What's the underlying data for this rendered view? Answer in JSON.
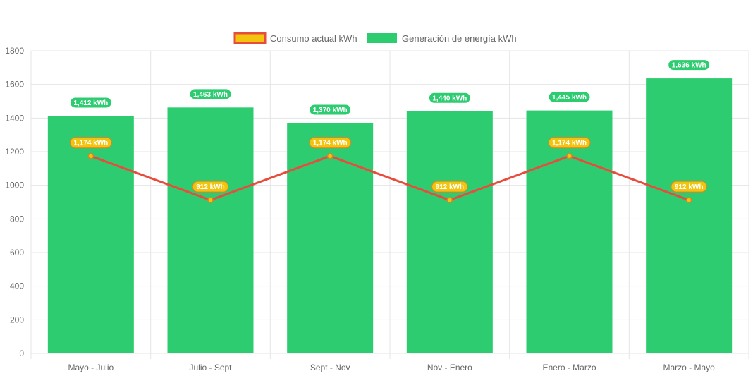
{
  "colors": {
    "bar": "#2ecc71",
    "line": "#e74c3c",
    "point_fill": "#f1c40f",
    "point_border": "#e67e22",
    "grid": "#e5e5e5",
    "text": "#666666"
  },
  "chart_data": {
    "type": "bar",
    "categories": [
      "Mayo - Julio",
      "Julio - Sept",
      "Sept - Nov",
      "Nov - Enero",
      "Enero - Marzo",
      "Marzo - Mayo"
    ],
    "series": [
      {
        "name": "Consumo actual kWh",
        "type": "line",
        "values": [
          1174,
          912,
          1174,
          912,
          1174,
          912
        ],
        "labels": [
          "1,174 kWh",
          "912 kWh",
          "1,174 kWh",
          "912 kWh",
          "1,174 kWh",
          "912 kWh"
        ]
      },
      {
        "name": "Generación de energía kWh",
        "type": "bar",
        "values": [
          1412,
          1463,
          1370,
          1440,
          1445,
          1636
        ],
        "labels": [
          "1,412 kWh",
          "1,463 kWh",
          "1,370 kWh",
          "1,440 kWh",
          "1,445 kWh",
          "1,636 kWh"
        ]
      }
    ],
    "yticks": [
      "0",
      "200",
      "400",
      "600",
      "800",
      "1000",
      "1200",
      "1400",
      "1600",
      "1800"
    ],
    "ylim": [
      0,
      1800
    ],
    "grid": true,
    "legend_position": "top"
  }
}
